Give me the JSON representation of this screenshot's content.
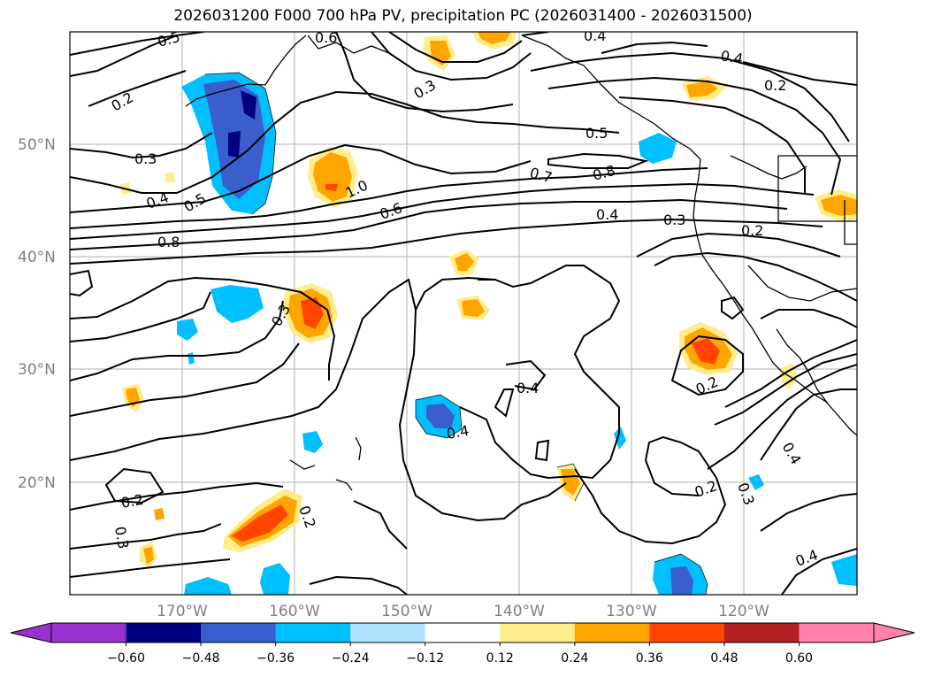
{
  "title": "2026031200 F000 700 hPa PV, precipitation PC (2026031400 - 2026031500)",
  "map": {
    "lat_labels": [
      "50°N",
      "40°N",
      "30°N",
      "20°N"
    ],
    "lon_labels": [
      "170°W",
      "160°W",
      "150°W",
      "140°W",
      "130°W",
      "120°W"
    ]
  },
  "contour_labels": [
    "0.5",
    "0.6",
    "0.3",
    "0.4",
    "0.2",
    "0.3",
    "0.4",
    "0.5",
    "0.8",
    "1.0",
    "0.6",
    "0.7",
    "0.8",
    "0.5",
    "0.4",
    "0.3",
    "0.2",
    "0.4",
    "0.4",
    "0.2",
    "0.2",
    "0.3",
    "0.2",
    "0.3",
    "0.2",
    "0.4",
    "0.2",
    "0.4",
    "0.3",
    "0.4"
  ],
  "colorbar": {
    "ticks": [
      "−0.60",
      "−0.48",
      "−0.36",
      "−0.24",
      "−0.12",
      "0.12",
      "0.24",
      "0.36",
      "0.48",
      "0.60"
    ],
    "colors": {
      "under": "#9932cc",
      "bins": [
        "#000080",
        "#3a5fcd",
        "#00bfff",
        "#b0e2ff",
        "#ffffff",
        "#ffec8b",
        "#ffa500",
        "#ff4500",
        "#b22222",
        "#ff82ab"
      ]
    }
  }
}
